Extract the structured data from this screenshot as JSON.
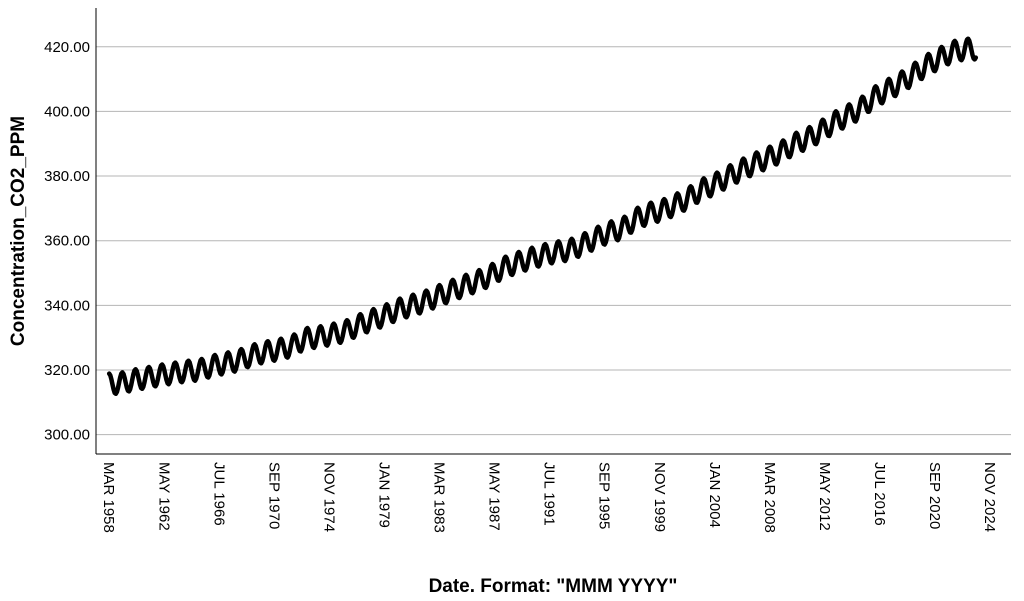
{
  "chart_data": {
    "type": "line",
    "title": "",
    "xlabel": "Date.  Format:  \"MMM YYYY\"",
    "ylabel": "Concentration_CO2_PPM",
    "ylim": [
      294,
      432
    ],
    "xlim": [
      "1957-03-01",
      "2026-06-01"
    ],
    "y_ticks": [
      300,
      320,
      340,
      360,
      380,
      400,
      420
    ],
    "y_tick_labels": [
      "300.00",
      "320.00",
      "340.00",
      "360.00",
      "380.00",
      "400.00",
      "420.00"
    ],
    "x_ticks": [
      "1958-03-01",
      "1962-05-01",
      "1966-07-01",
      "1970-09-01",
      "1974-11-01",
      "1979-01-01",
      "1983-03-01",
      "1987-05-01",
      "1991-07-01",
      "1995-09-01",
      "1999-11-01",
      "2004-01-01",
      "2008-03-01",
      "2012-05-01",
      "2016-07-01",
      "2020-09-01",
      "2024-11-01"
    ],
    "x_tick_labels": [
      "MAR 1958",
      "MAY 1962",
      "JUL 1966",
      "SEP 1970",
      "NOV 1974",
      "JAN 1979",
      "MAR 1983",
      "MAY 1987",
      "JUL 1991",
      "SEP 1995",
      "NOV 1999",
      "JAN 2004",
      "MAR 2008",
      "MAY 2012",
      "JUL 2016",
      "SEP 2020",
      "NOV 2024"
    ],
    "grid": {
      "horizontal": true,
      "vertical": false
    },
    "series": [
      {
        "color": "#000000",
        "x": [
          "1958-03-01",
          "1959-01-01",
          "1960-01-01",
          "1961-01-01",
          "1962-01-01",
          "1963-01-01",
          "1964-01-01",
          "1965-01-01",
          "1966-01-01",
          "1967-01-01",
          "1968-01-01",
          "1969-01-01",
          "1970-01-01",
          "1971-01-01",
          "1972-01-01",
          "1973-01-01",
          "1974-01-01",
          "1975-01-01",
          "1976-01-01",
          "1977-01-01",
          "1978-01-01",
          "1979-01-01",
          "1980-01-01",
          "1981-01-01",
          "1982-01-01",
          "1983-01-01",
          "1984-01-01",
          "1985-01-01",
          "1986-01-01",
          "1987-01-01",
          "1988-01-01",
          "1989-01-01",
          "1990-01-01",
          "1991-01-01",
          "1992-01-01",
          "1993-01-01",
          "1994-01-01",
          "1995-01-01",
          "1996-01-01",
          "1997-01-01",
          "1998-01-01",
          "1999-01-01",
          "2000-01-01",
          "2001-01-01",
          "2002-01-01",
          "2003-01-01",
          "2004-01-01",
          "2005-01-01",
          "2006-01-01",
          "2007-01-01",
          "2008-01-01",
          "2009-01-01",
          "2010-01-01",
          "2011-01-01",
          "2012-01-01",
          "2013-01-01",
          "2014-01-01",
          "2015-01-01",
          "2016-01-01",
          "2017-01-01",
          "2018-01-01",
          "2019-01-01",
          "2020-01-01",
          "2021-01-01",
          "2022-01-01",
          "2023-01-01"
        ],
        "y": [
          315.7,
          315.9,
          316.9,
          317.6,
          318.4,
          319.0,
          319.6,
          320.0,
          321.3,
          322.1,
          323.0,
          324.6,
          325.6,
          326.3,
          327.4,
          329.7,
          330.2,
          331.0,
          331.9,
          333.8,
          335.4,
          336.8,
          338.7,
          339.9,
          341.1,
          342.8,
          344.4,
          346.0,
          347.4,
          349.2,
          351.6,
          353.1,
          354.4,
          355.6,
          356.5,
          357.1,
          358.8,
          360.8,
          362.6,
          363.7,
          366.7,
          368.4,
          369.4,
          371.1,
          373.2,
          375.8,
          377.5,
          379.8,
          381.9,
          383.8,
          385.6,
          387.4,
          389.9,
          391.6,
          393.8,
          396.5,
          398.6,
          400.8,
          404.2,
          406.5,
          408.7,
          411.4,
          414.2,
          416.4,
          418.5,
          419.3
        ],
        "seasonal_amplitude": 3.2
      }
    ]
  }
}
